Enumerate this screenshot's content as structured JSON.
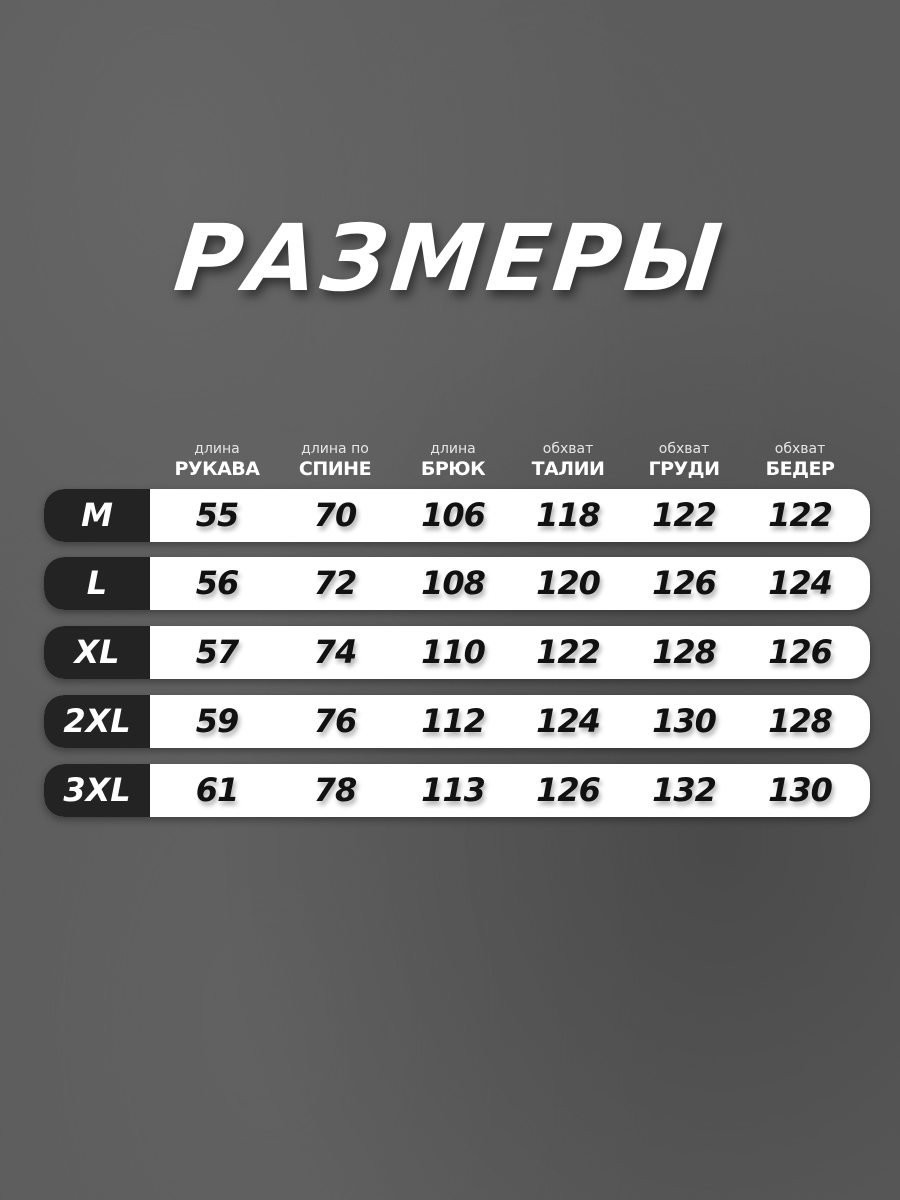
{
  "title": "РАЗМЕРЫ",
  "headers": [
    {
      "small": "длина",
      "bold": "РУКАВА"
    },
    {
      "small": "длина по",
      "bold": "СПИНЕ"
    },
    {
      "small": "длина",
      "bold": "БРЮК"
    },
    {
      "small": "обхват",
      "bold": "ТАЛИИ"
    },
    {
      "small": "обхват",
      "bold": "ГРУДИ"
    },
    {
      "small": "обхват",
      "bold": "БЕДЕР"
    }
  ],
  "rows": [
    {
      "size": "M",
      "values": [
        "55",
        "70",
        "106",
        "118",
        "122",
        "122"
      ]
    },
    {
      "size": "L",
      "values": [
        "56",
        "72",
        "108",
        "120",
        "126",
        "124"
      ]
    },
    {
      "size": "XL",
      "values": [
        "57",
        "74",
        "110",
        "122",
        "128",
        "126"
      ]
    },
    {
      "size": "2XL",
      "values": [
        "59",
        "76",
        "112",
        "124",
        "130",
        "128"
      ]
    },
    {
      "size": "3XL",
      "values": [
        "61",
        "78",
        "113",
        "126",
        "132",
        "130"
      ]
    }
  ],
  "colors": {
    "background": "#5c5c5c",
    "size_cell": "#232323",
    "row": "#ffffff"
  }
}
